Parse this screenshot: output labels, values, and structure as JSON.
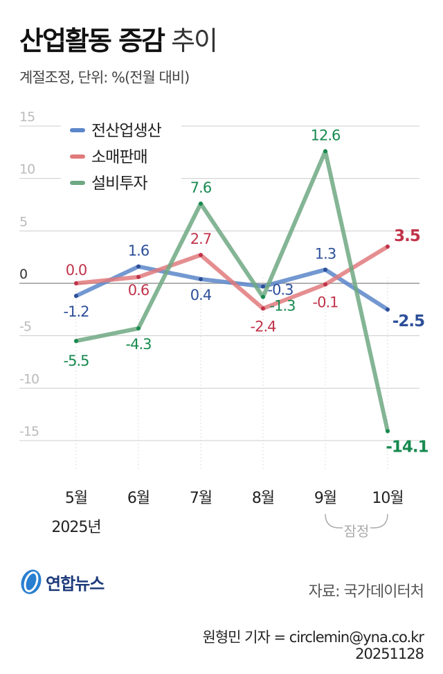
{
  "header": {
    "title_bold": "산업활동 증감",
    "title_light": "추이",
    "subtitle": "계절조정, 단위: %(전월 대비)"
  },
  "chart_data": {
    "type": "line",
    "categories": [
      "5월",
      "6월",
      "7월",
      "8월",
      "9월",
      "10월"
    ],
    "year_label": "2025년",
    "provisional_label": "잠정",
    "ylim": [
      -15,
      15
    ],
    "yticks": [
      "15",
      "10",
      "5",
      "0",
      "-5",
      "-10",
      "-15"
    ],
    "ytick_values": [
      15,
      10,
      5,
      0,
      -5,
      -10,
      -15
    ],
    "grid": true,
    "legend_position": "top-left",
    "series": [
      {
        "name": "전산업생산",
        "color": "#5b86c9",
        "label_color": "#2d4f9a",
        "values": [
          -1.2,
          1.6,
          0.4,
          -0.3,
          1.3,
          -2.5
        ],
        "labels": [
          "-1.2",
          "1.6",
          "0.4",
          "-0.3",
          "1.3",
          "-2.5"
        ]
      },
      {
        "name": "소매판매",
        "color": "#e07a7c",
        "label_color": "#c0334a",
        "values": [
          0.0,
          0.6,
          2.7,
          -2.4,
          -0.1,
          3.5
        ],
        "labels": [
          "0.0",
          "0.6",
          "2.7",
          "-2.4",
          "-0.1",
          "3.5"
        ]
      },
      {
        "name": "설비투자",
        "color": "#6fa883",
        "label_color": "#178a4f",
        "values": [
          -5.5,
          -4.3,
          7.6,
          -1.3,
          12.6,
          -14.1
        ],
        "labels": [
          "-5.5",
          "-4.3",
          "7.6",
          "-1.3",
          "12.6",
          "-14.1"
        ]
      }
    ]
  },
  "footer": {
    "logo": "연합뉴스",
    "source": "자료: 국가데이터처",
    "credit": "원형민 기자 = circlemin@yna.co.kr",
    "date": "20251128"
  }
}
